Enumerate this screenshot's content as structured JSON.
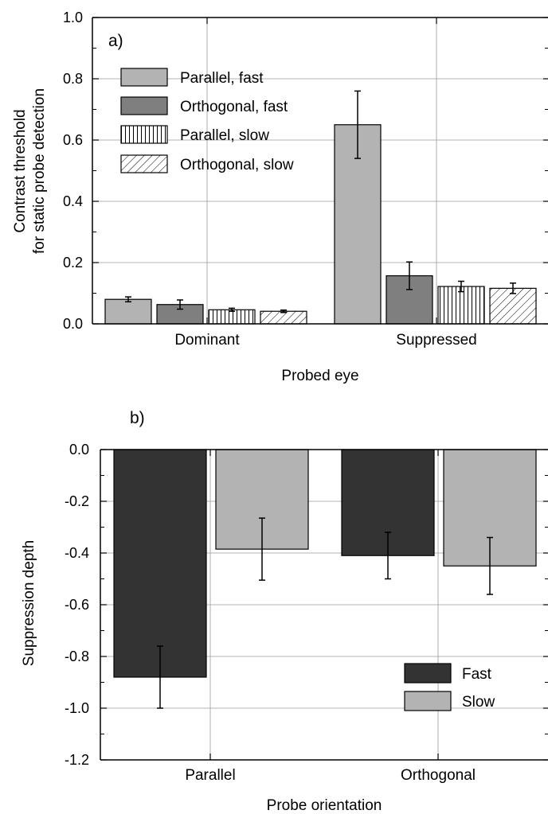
{
  "chart_data": [
    {
      "type": "bar",
      "panel_label": "a)",
      "xlabel": "Probed eye",
      "ylabel_lines": [
        "Contrast threshold",
        "for static probe detection"
      ],
      "ylim": [
        0.0,
        1.0
      ],
      "yticks": [
        "0.0",
        "0.2",
        "0.4",
        "0.6",
        "0.8",
        "1.0"
      ],
      "categories": [
        "Dominant",
        "Suppressed"
      ],
      "grid": true,
      "legend_position": "top-left",
      "series": [
        {
          "name": "Parallel, fast",
          "pattern": "solid-light",
          "color": "#b3b3b3",
          "values": [
            0.08,
            0.65
          ],
          "errors": [
            0.008,
            0.11
          ]
        },
        {
          "name": "Orthogonal, fast",
          "pattern": "solid-dark",
          "color": "#7f7f7f",
          "values": [
            0.063,
            0.157
          ],
          "errors": [
            0.015,
            0.045
          ]
        },
        {
          "name": "Parallel, slow",
          "pattern": "vertical-lines",
          "color": "#ffffff",
          "values": [
            0.046,
            0.122
          ],
          "errors": [
            0.005,
            0.017
          ]
        },
        {
          "name": "Orthogonal, slow",
          "pattern": "diagonal-lines",
          "color": "#ffffff",
          "values": [
            0.041,
            0.116
          ],
          "errors": [
            0.004,
            0.017
          ]
        }
      ]
    },
    {
      "type": "bar",
      "panel_label": "b)",
      "xlabel": "Probe orientation",
      "ylabel": "Suppression depth",
      "ylim": [
        -1.2,
        0.0
      ],
      "yticks": [
        "0.0",
        "-0.2",
        "-0.4",
        "-0.6",
        "-0.8",
        "-1.0",
        "-1.2"
      ],
      "categories": [
        "Parallel",
        "Orthogonal"
      ],
      "grid": true,
      "legend_position": "bottom-right",
      "series": [
        {
          "name": "Fast",
          "color": "#333333",
          "values": [
            -0.88,
            -0.41
          ],
          "errors": [
            0.12,
            0.09
          ]
        },
        {
          "name": "Slow",
          "color": "#b3b3b3",
          "values": [
            -0.385,
            -0.45
          ],
          "errors": [
            0.12,
            0.11
          ]
        }
      ]
    }
  ]
}
